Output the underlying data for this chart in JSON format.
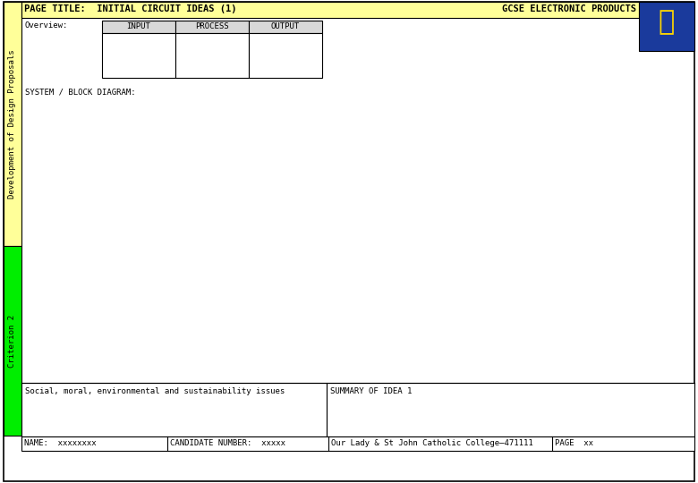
{
  "page_title": "PAGE TITLE:  INITIAL CIRCUIT IDEAS (1)",
  "gcse_text": "GCSE ELECTRONIC PRODUCTS",
  "overview_label": "Overview:",
  "table_headers": [
    "INPUT",
    "PROCESS",
    "OUTPUT"
  ],
  "system_label": "SYSTEM / BLOCK DIAGRAM:",
  "sidebar_top_text": "Development of Design Proposals",
  "sidebar_bottom_text": "Criterion 2",
  "sidebar_top_color": "#FFFF99",
  "sidebar_bottom_color": "#00EE00",
  "social_label": "Social, moral, environmental and sustainability issues",
  "summary_label": "SUMMARY OF IDEA 1",
  "footer_name": "NAME:",
  "footer_name_val": "xxxxxxxx",
  "footer_candidate": "CANDIDATE NUMBER:",
  "footer_candidate_val": "xxxxx",
  "footer_school": "Our Lady & St John Catholic College—471111",
  "footer_page": "PAGE",
  "footer_page_val": "xx",
  "bg_color": "#FFFFFF",
  "title_bg": "#FFFF99",
  "font_size_title": 7.5,
  "font_size_body": 6.5,
  "font_size_sidebar": 6.5,
  "font_size_footer": 6.5
}
